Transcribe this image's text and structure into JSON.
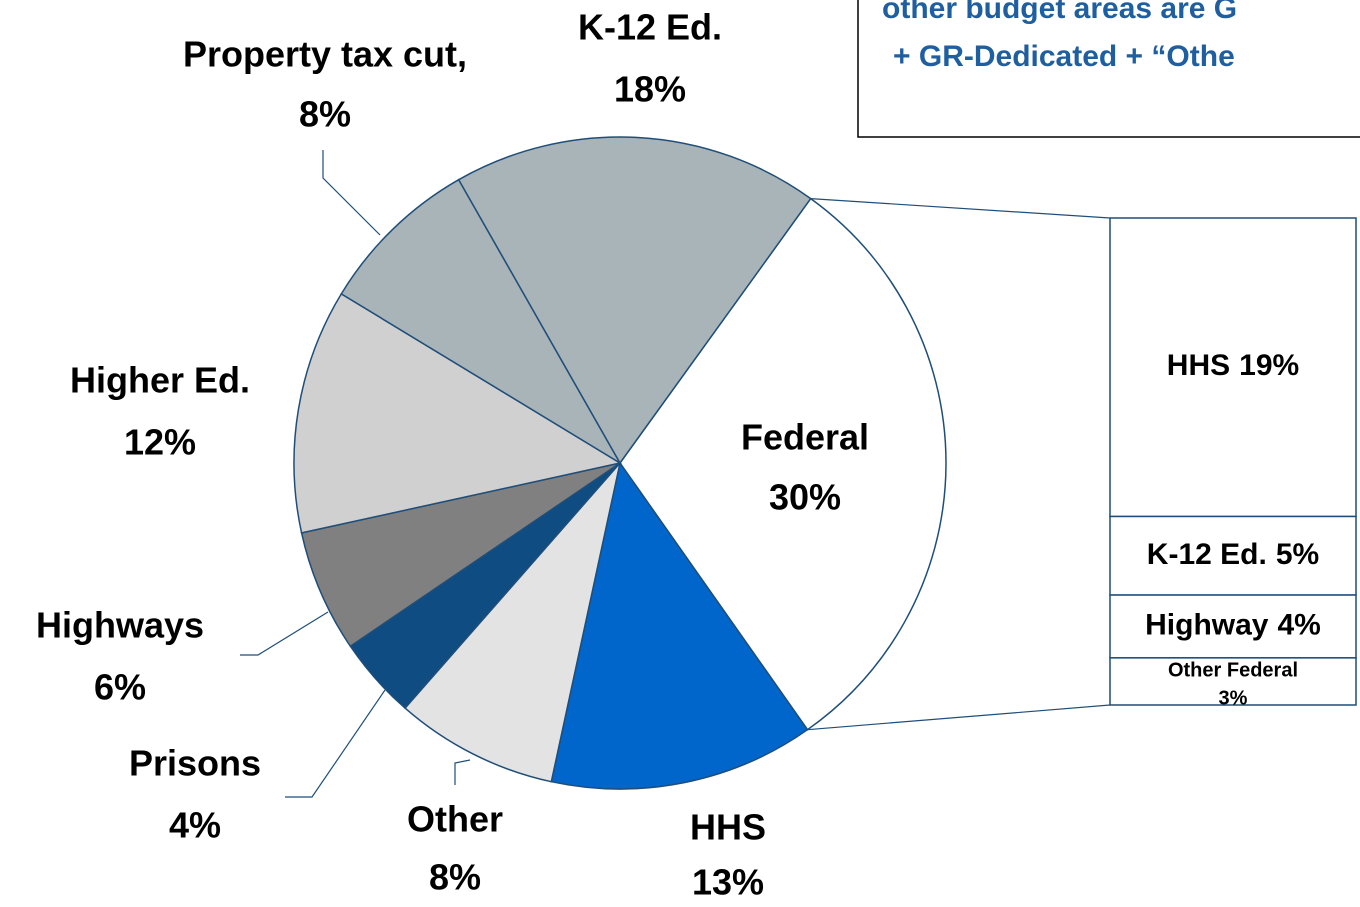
{
  "chart_data": {
    "type": "pie",
    "categories": [
      "Federal",
      "HHS",
      "Other",
      "Prisons",
      "Highways",
      "Higher Ed.",
      "Property tax cut,",
      "K-12 Ed."
    ],
    "values": [
      30,
      13,
      8,
      4,
      6,
      12,
      8,
      18
    ],
    "value_labels": [
      "30%",
      "13%",
      "8%",
      "4%",
      "6%",
      "12%",
      "8%",
      "18%"
    ],
    "colors": [
      "#ffffff",
      "#0066cc",
      "#e3e3e3",
      "#0f4c81",
      "#808080",
      "#d0d0d0",
      "#a8b4b8",
      "#a8b4b8"
    ],
    "breakdown": {
      "categories": [
        "HHS",
        "K-12 Ed.",
        "Highway",
        "Other Federal"
      ],
      "values": [
        19,
        5,
        4,
        3
      ],
      "value_labels": [
        "19%",
        "5%",
        "4%",
        "3%"
      ],
      "color": "#ffffff"
    },
    "annotations": [
      "other budget areas are G",
      "+ GR-Dedicated + “Othe"
    ]
  }
}
